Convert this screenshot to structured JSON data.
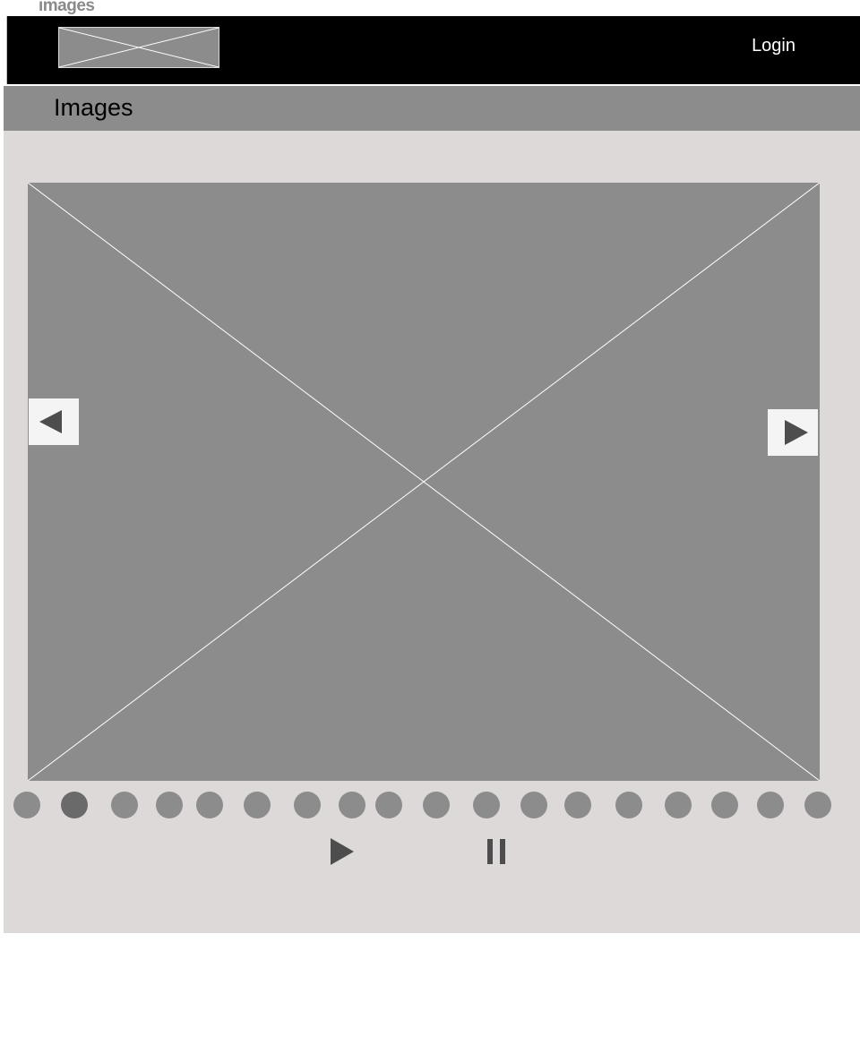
{
  "page": {
    "label": "images"
  },
  "header": {
    "logo_icon": "image-placeholder-icon",
    "login_label": "Login"
  },
  "title_bar": {
    "title": "Images"
  },
  "carousel": {
    "slide_icon": "image-placeholder-icon",
    "prev_icon": "triangle-left-icon",
    "next_icon": "triangle-right-icon",
    "dot_count": 18,
    "active_dot_index": 1,
    "play_icon": "play-icon",
    "pause_icon": "pause-icon"
  },
  "colors": {
    "header_bg": "#000000",
    "title_bar_bg": "#8c8c8c",
    "content_bg": "#ddd9d8",
    "placeholder": "#8c8c8c",
    "dot": "#8c8c8c",
    "dot_active": "#6a6a6a",
    "control": "#4d4d4d"
  }
}
